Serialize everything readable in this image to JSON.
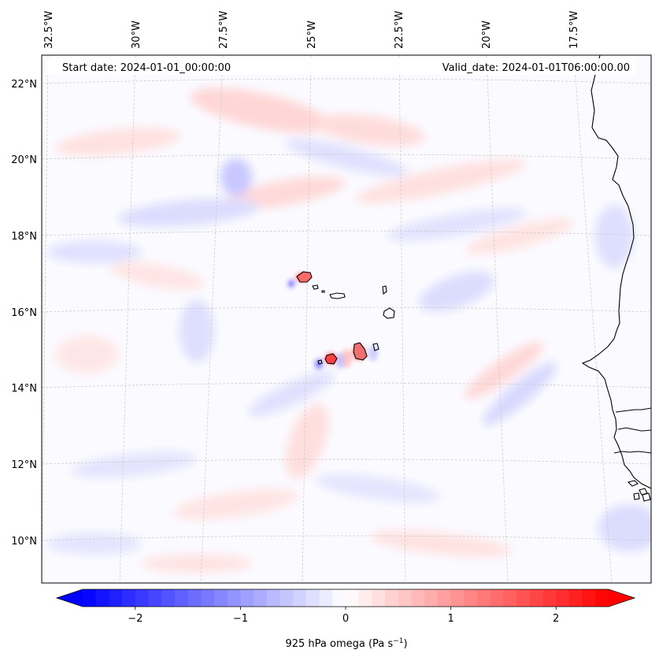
{
  "map": {
    "header": {
      "start_date": "Start date: 2024-01-01_00:00:00",
      "valid_date": "Valid_date: 2024-01-01T06:00:00.00"
    },
    "longitude_labels": [
      "32.5°W",
      "30°W",
      "27.5°W",
      "25°W",
      "22.5°W",
      "20°W",
      "17.5°W"
    ],
    "latitude_labels": [
      "22°N",
      "20°N",
      "18°N",
      "16°N",
      "14°N",
      "12°N",
      "10°N"
    ],
    "gridlines": true,
    "features": [
      "Cape Verde islands",
      "West African coastline"
    ],
    "colormap": "bwr",
    "colorbar": {
      "label": "925 hPa omega (Pa s",
      "label_exponent": "−1",
      "label_close": ")",
      "ticks": [
        "−2",
        "−1",
        "0",
        "1",
        "2"
      ],
      "range": [
        -2.5,
        2.5
      ],
      "extend": "both"
    },
    "colors": {
      "negative": "#0000ff",
      "zero": "#ffffff",
      "positive": "#ff0000",
      "coastline": "#000000",
      "grid": "#c8c8c8"
    }
  }
}
